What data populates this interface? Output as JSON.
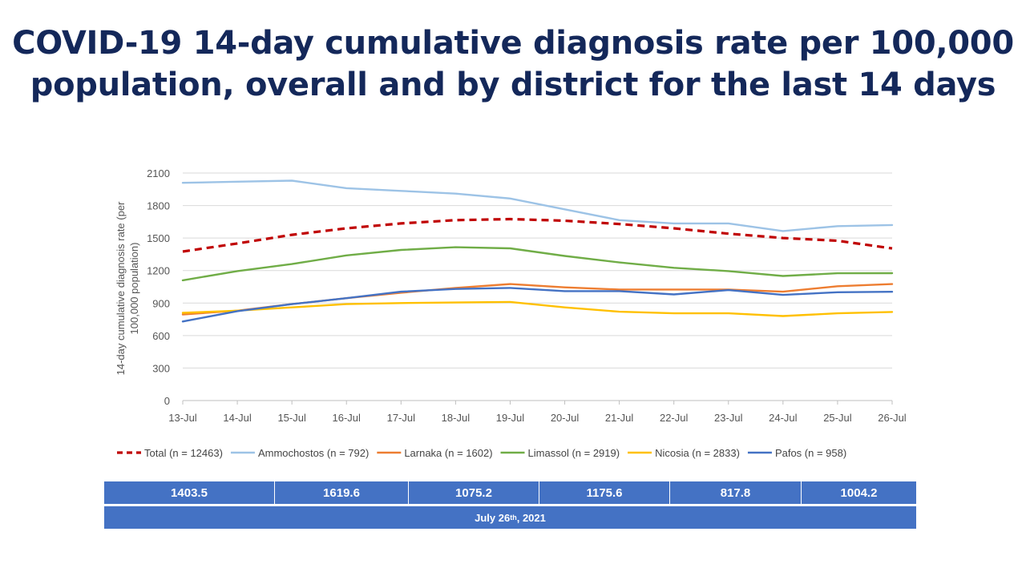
{
  "title_lines": [
    "COVID-19 14-day cumulative diagnosis rate per 100,000",
    "population, overall and by district for the last 14 days"
  ],
  "chart_data": {
    "type": "line",
    "x": [
      "13-Jul",
      "14-Jul",
      "15-Jul",
      "16-Jul",
      "17-Jul",
      "18-Jul",
      "19-Jul",
      "20-Jul",
      "21-Jul",
      "22-Jul",
      "23-Jul",
      "24-Jul",
      "25-Jul",
      "26-Jul"
    ],
    "ylabel_lines": [
      "14-day cumulative diagnosis rate (per",
      "100,000 population)"
    ],
    "ylim": [
      0,
      2100
    ],
    "yticks": [
      0,
      300,
      600,
      900,
      1200,
      1500,
      1800,
      2100
    ],
    "grid": true,
    "legend_position": "bottom",
    "series": [
      {
        "name": "Total (n = 12463)",
        "color": "#c00000",
        "dashed": true,
        "values": [
          1375,
          1450,
          1530,
          1590,
          1635,
          1665,
          1675,
          1660,
          1630,
          1590,
          1540,
          1500,
          1475,
          1404
        ]
      },
      {
        "name": "Ammochostos (n = 792)",
        "color": "#9dc3e6",
        "dashed": false,
        "values": [
          2010,
          2020,
          2030,
          1960,
          1935,
          1910,
          1865,
          1765,
          1665,
          1635,
          1635,
          1565,
          1610,
          1620
        ]
      },
      {
        "name": "Larnaka (n = 1602)",
        "color": "#ed7d31",
        "dashed": false,
        "values": [
          795,
          830,
          890,
          945,
          995,
          1040,
          1075,
          1045,
          1025,
          1025,
          1025,
          1005,
          1055,
          1075
        ]
      },
      {
        "name": "Limassol (n = 2919)",
        "color": "#70ad47",
        "dashed": false,
        "values": [
          1110,
          1195,
          1260,
          1340,
          1390,
          1415,
          1405,
          1335,
          1275,
          1225,
          1195,
          1150,
          1175,
          1176
        ]
      },
      {
        "name": "Nicosia (n = 2833)",
        "color": "#ffc000",
        "dashed": false,
        "values": [
          810,
          830,
          860,
          890,
          900,
          905,
          910,
          860,
          820,
          805,
          805,
          780,
          805,
          818
        ]
      },
      {
        "name": "Pafos (n = 958)",
        "color": "#4472c4",
        "dashed": false,
        "values": [
          730,
          825,
          890,
          945,
          1005,
          1030,
          1040,
          1010,
          1010,
          980,
          1020,
          975,
          1000,
          1004
        ]
      }
    ]
  },
  "summary_table": {
    "values": [
      "1403.5",
      "1619.6",
      "1075.2",
      "1175.6",
      "817.8",
      "1004.2"
    ],
    "date_main": "July 26",
    "date_sup": "th",
    "date_tail": ", 2021"
  }
}
